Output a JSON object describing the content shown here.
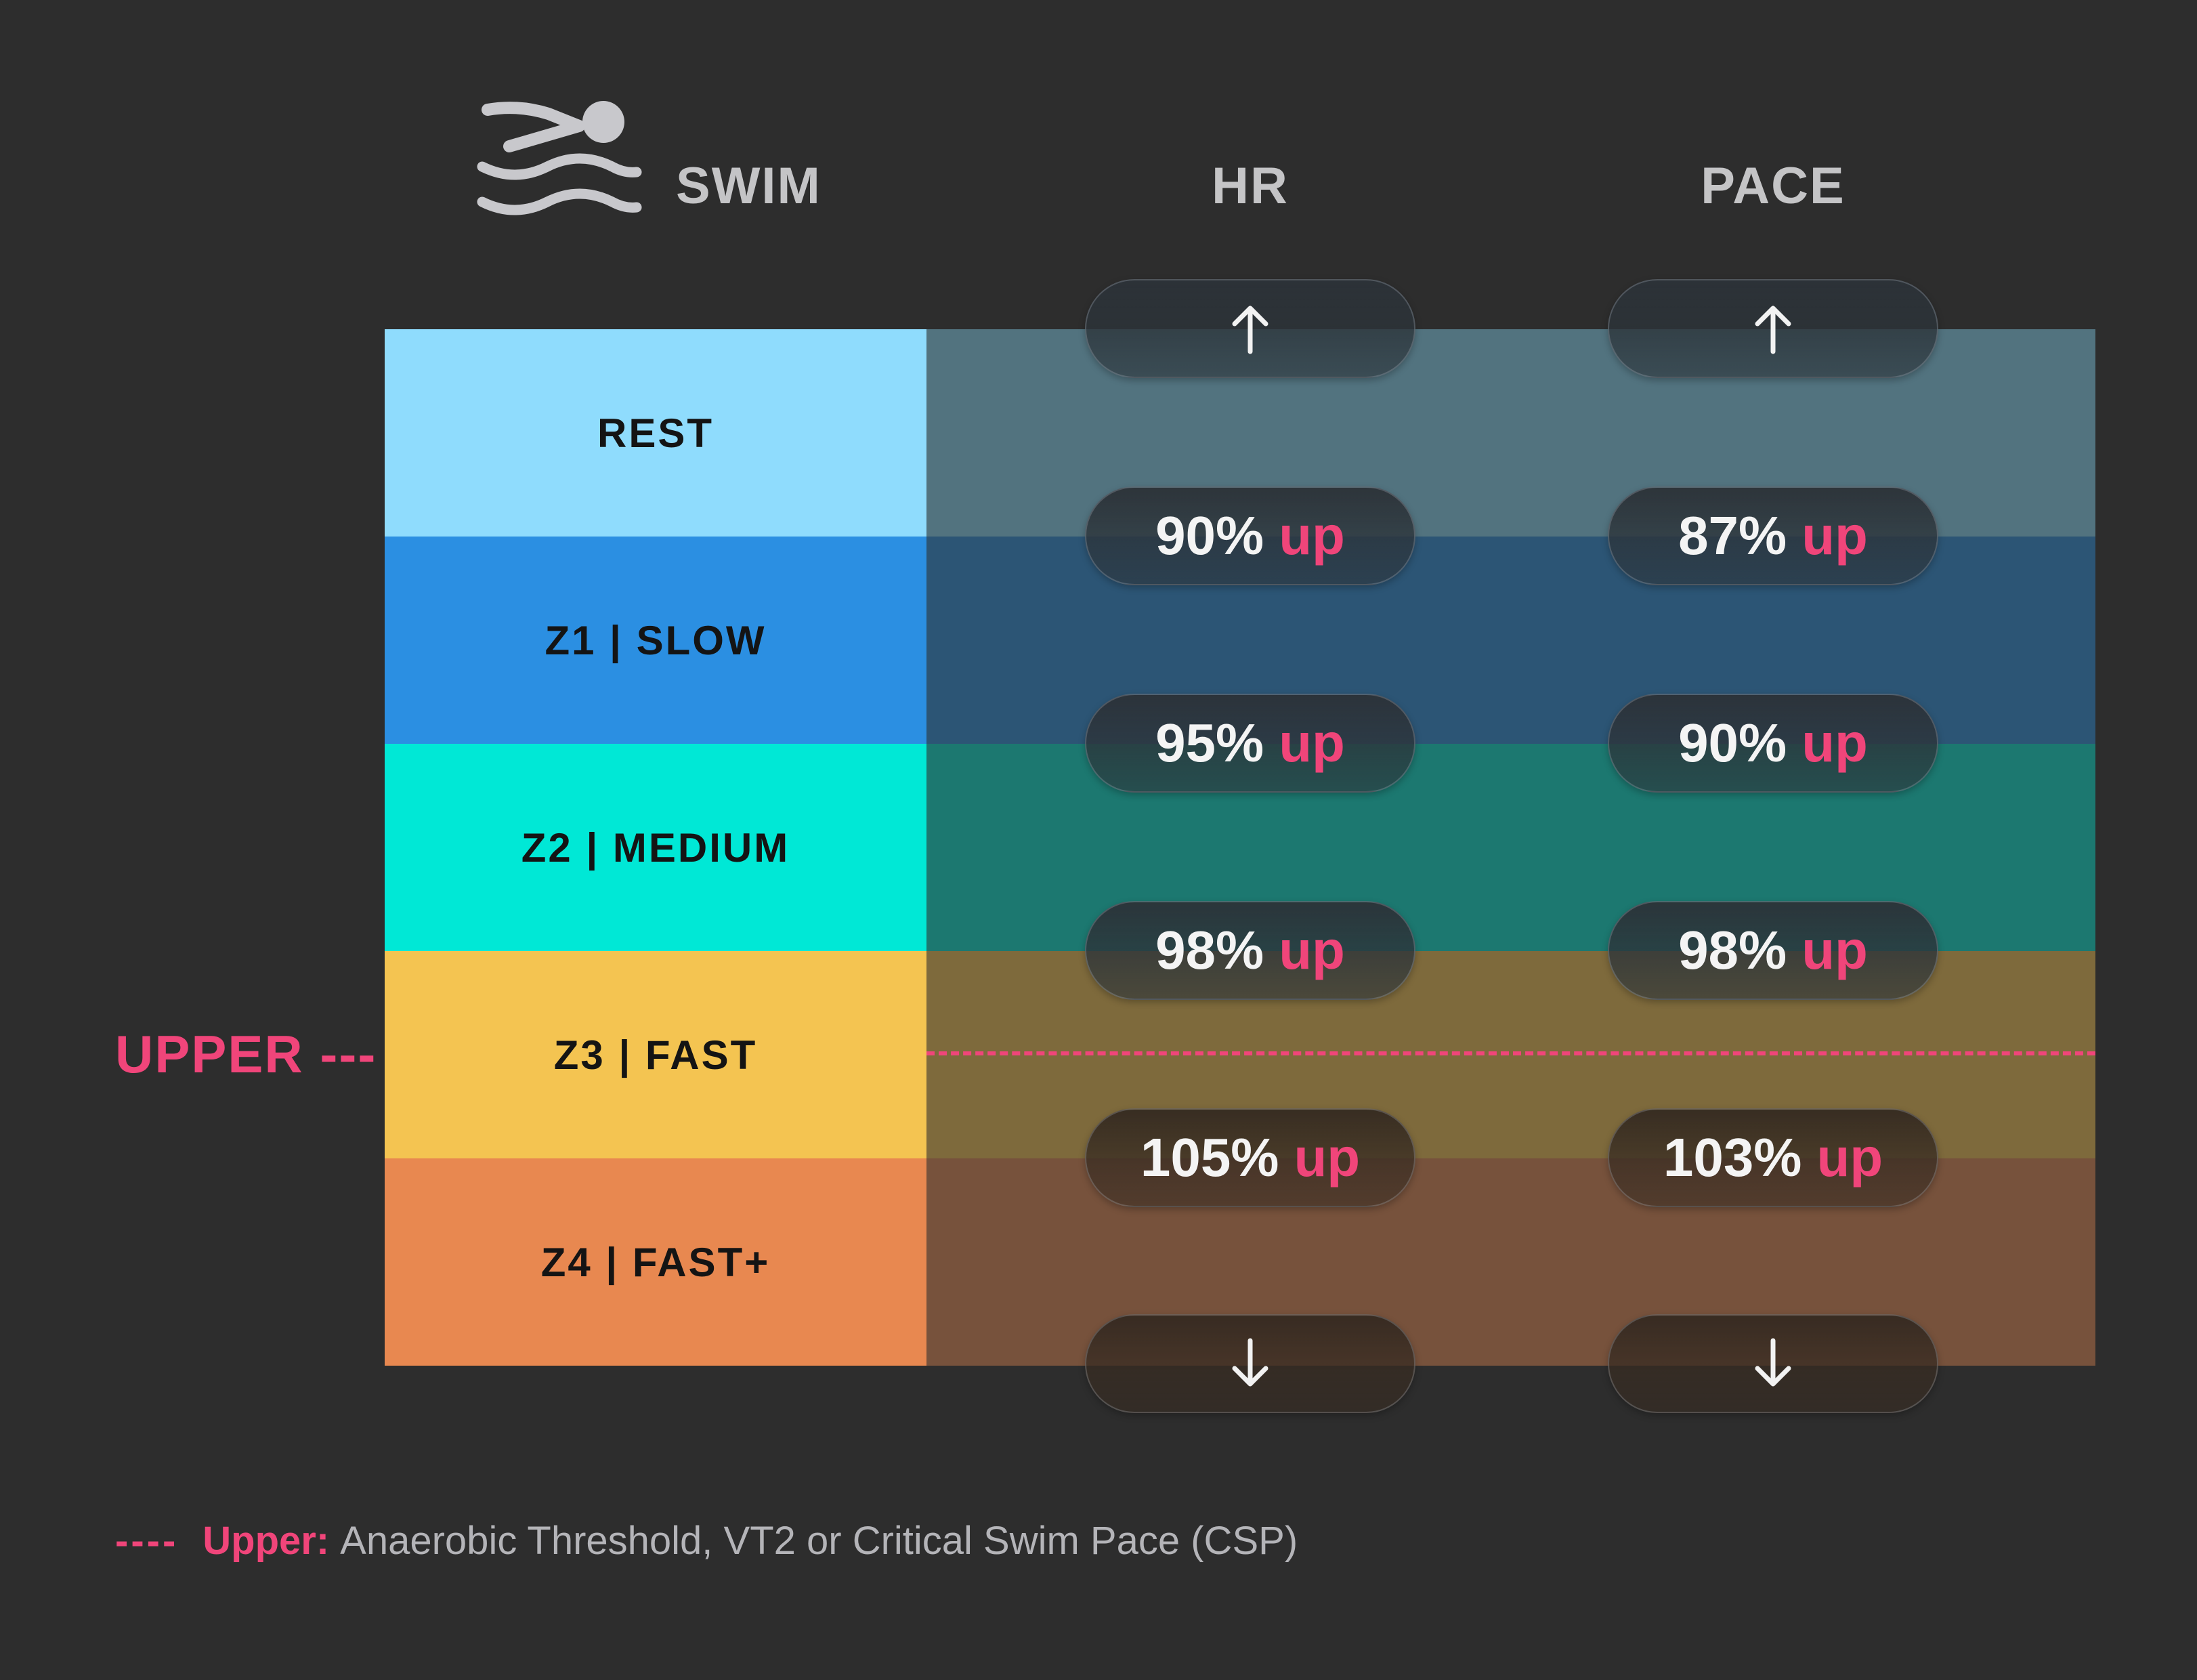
{
  "header": {
    "sport_label": "SWIM",
    "sport_icon": "swimmer-icon",
    "col_hr": "HR",
    "col_pace": "PACE"
  },
  "zones": [
    {
      "label": "REST",
      "color": "#8fdcfd",
      "band_color": "#52737f"
    },
    {
      "label": "Z1 | SLOW",
      "color": "#2b8fe2",
      "band_color": "#2c5575"
    },
    {
      "label": "Z2 | MEDIUM",
      "color": "#00e8d6",
      "band_color": "#1c7870"
    },
    {
      "label": "Z3 | FAST",
      "color": "#f4c451",
      "band_color": "#7e6a3c"
    },
    {
      "label": "Z4 | FAST+",
      "color": "#e88850",
      "band_color": "#77523c"
    }
  ],
  "hr": {
    "top_arrow": "arrow-up-icon",
    "bottom_arrow": "arrow-down-icon",
    "thresholds": [
      {
        "value": "90%",
        "suffix": "up"
      },
      {
        "value": "95%",
        "suffix": "up"
      },
      {
        "value": "98%",
        "suffix": "up"
      },
      {
        "value": "105%",
        "suffix": "up"
      }
    ]
  },
  "pace": {
    "top_arrow": "arrow-up-icon",
    "bottom_arrow": "arrow-down-icon",
    "thresholds": [
      {
        "value": "87%",
        "suffix": "up"
      },
      {
        "value": "90%",
        "suffix": "up"
      },
      {
        "value": "98%",
        "suffix": "up"
      },
      {
        "value": "103%",
        "suffix": "up"
      }
    ]
  },
  "upper_marker": {
    "label": "UPPER ---",
    "color": "#f0457a"
  },
  "footnote": {
    "dash": "----",
    "key": "Upper:",
    "text": "Anaerobic Threshold, VT2 or Critical Swim Pace (CSP)"
  }
}
